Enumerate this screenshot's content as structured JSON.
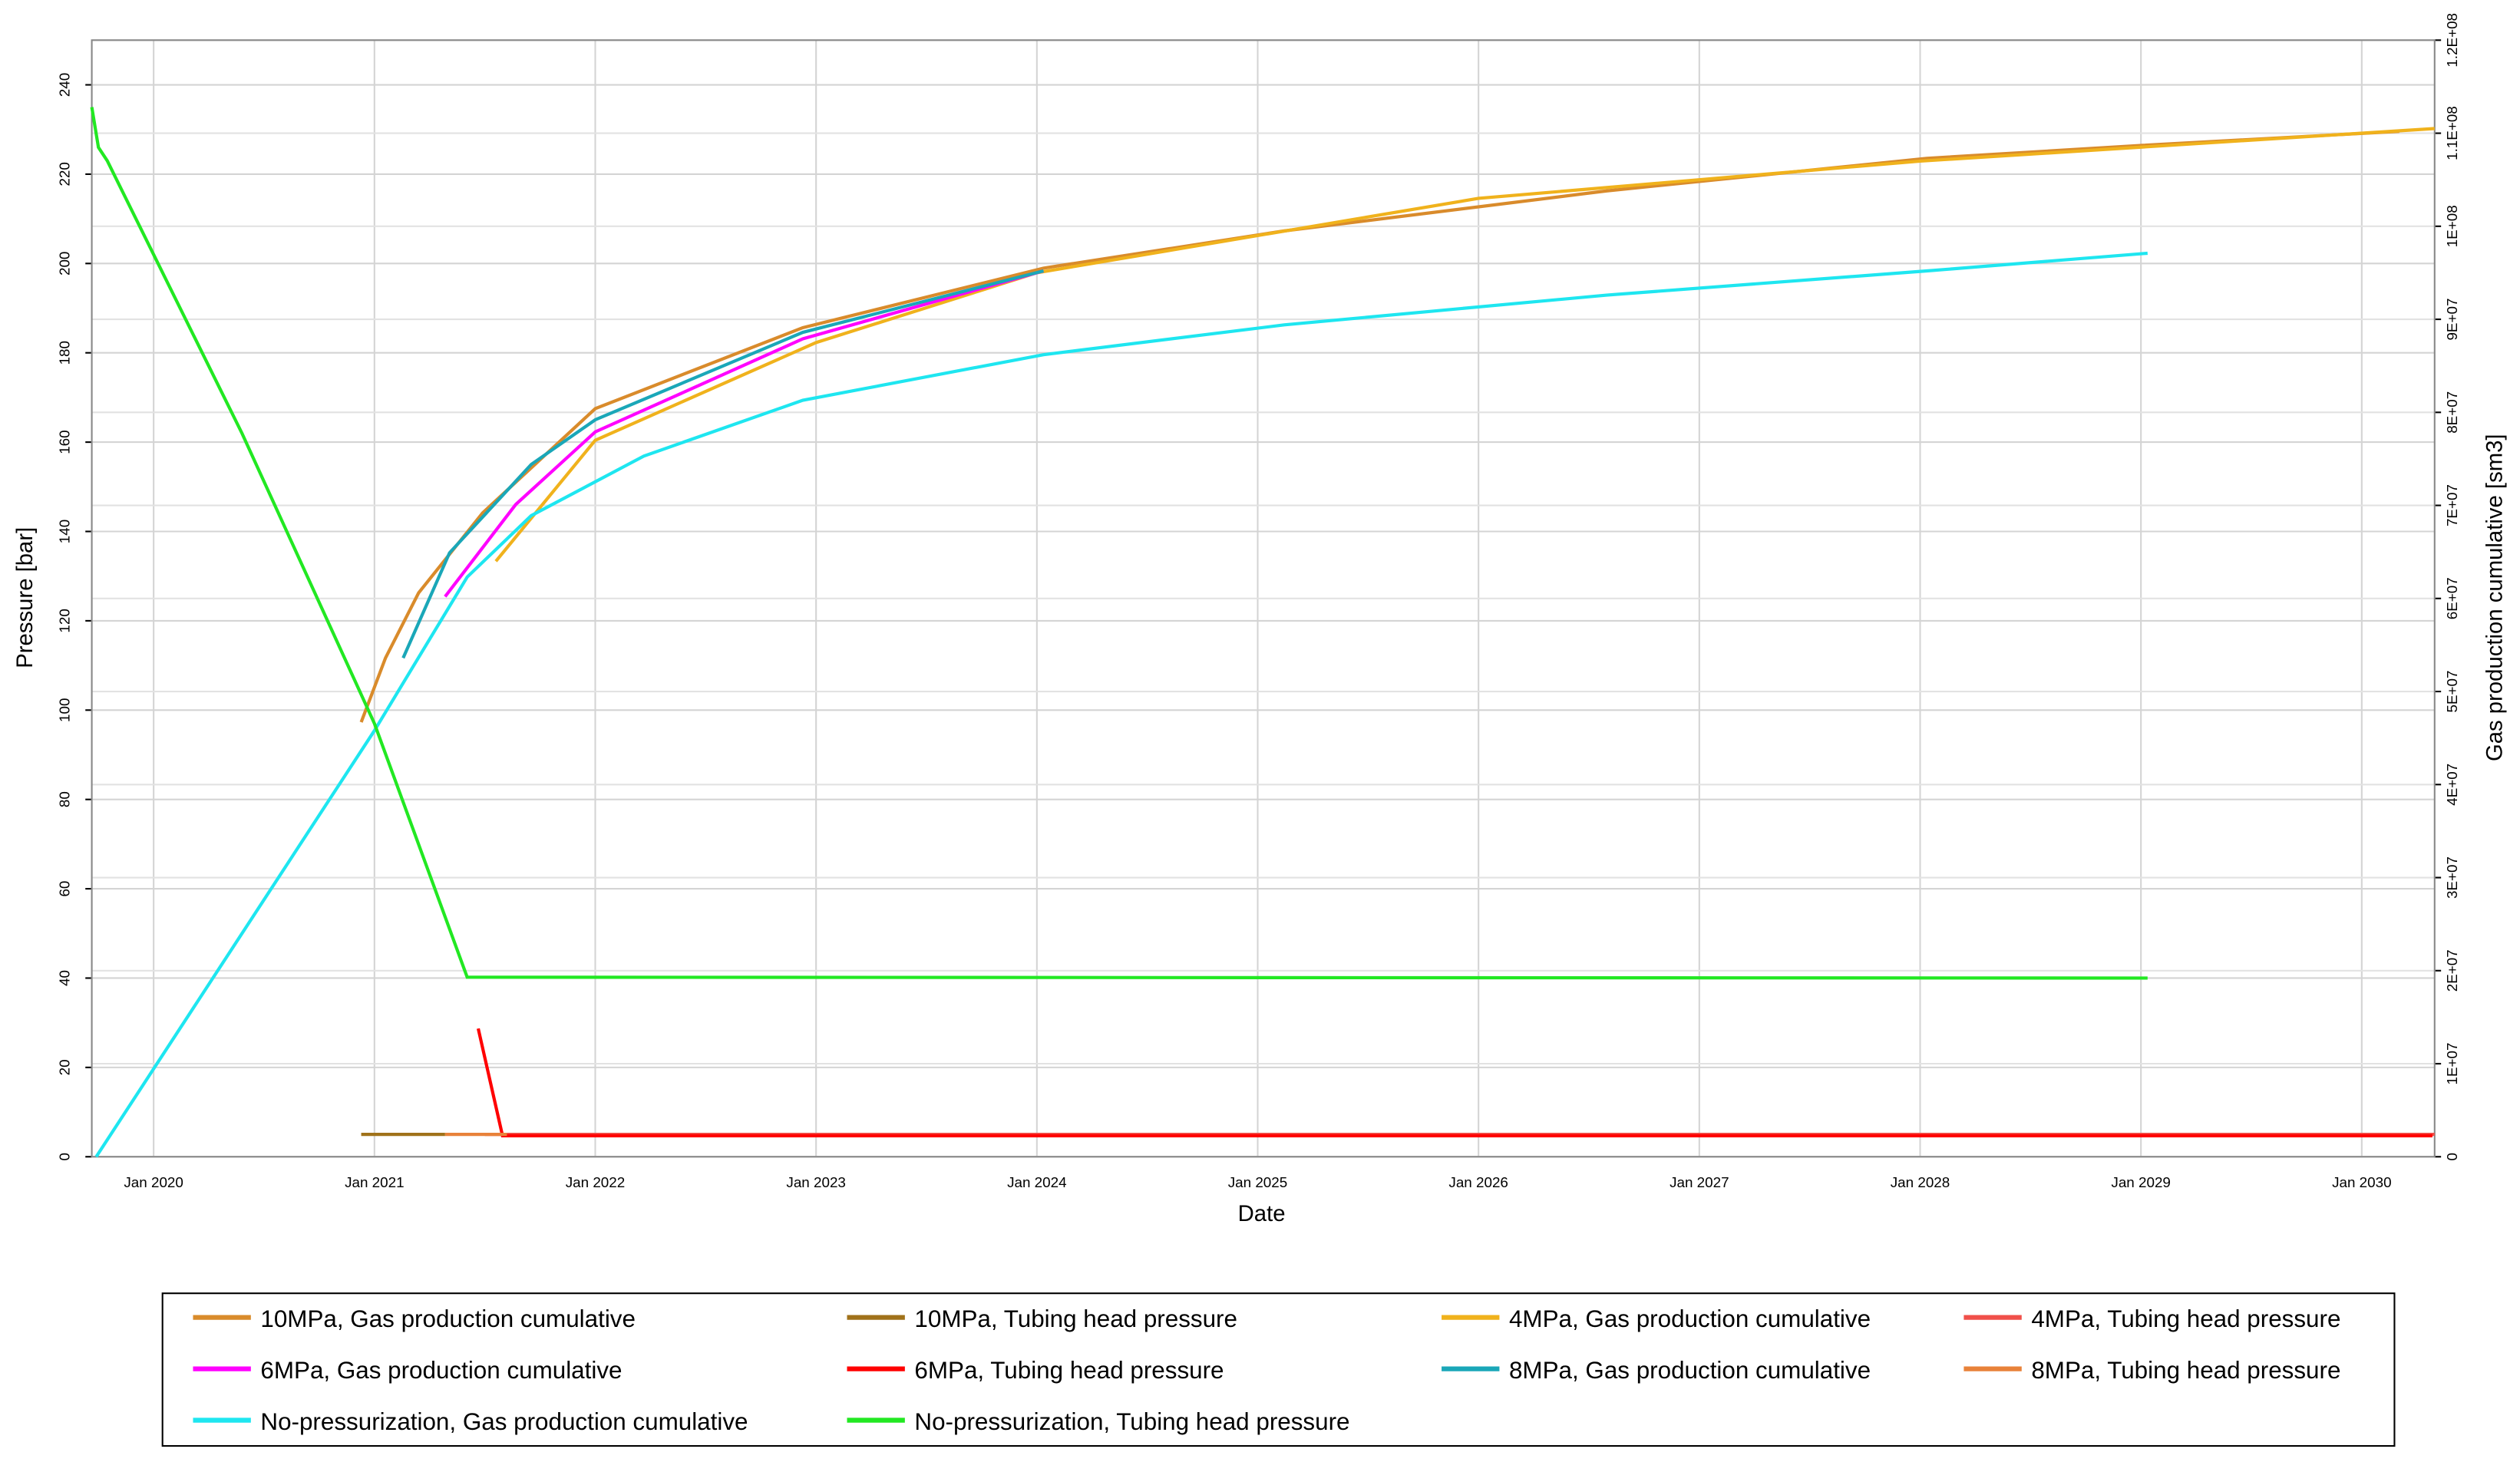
{
  "chart_data": {
    "type": "line",
    "x_label": "Date",
    "y_label": "Pressure [bar]",
    "y2_label": "Gas production cumulative [sm3]",
    "xlim": [
      2019.72,
      2030.33
    ],
    "xticks": [
      {
        "value": 2020,
        "label": "Jan 2020"
      },
      {
        "value": 2021,
        "label": "Jan 2021"
      },
      {
        "value": 2022,
        "label": "Jan 2022"
      },
      {
        "value": 2023,
        "label": "Jan 2023"
      },
      {
        "value": 2024,
        "label": "Jan 2024"
      },
      {
        "value": 2025,
        "label": "Jan 2025"
      },
      {
        "value": 2026,
        "label": "Jan 2026"
      },
      {
        "value": 2027,
        "label": "Jan 2027"
      },
      {
        "value": 2028,
        "label": "Jan 2028"
      },
      {
        "value": 2029,
        "label": "Jan 2029"
      },
      {
        "value": 2030,
        "label": "Jan 2030"
      }
    ],
    "ylim": [
      0,
      250
    ],
    "yticks": [
      0,
      20,
      40,
      60,
      80,
      100,
      120,
      140,
      160,
      180,
      200,
      220,
      240
    ],
    "y2lim": [
      0,
      120000000
    ],
    "y2ticks": [
      0,
      {
        "value": 10000000,
        "label": "1E+07"
      },
      {
        "value": 20000000,
        "label": "2E+07"
      },
      {
        "value": 30000000,
        "label": "3E+07"
      },
      {
        "value": 40000000,
        "label": "4E+07"
      },
      {
        "value": 50000000,
        "label": "5E+07"
      },
      {
        "value": 60000000,
        "label": "6E+07"
      },
      {
        "value": 70000000,
        "label": "7E+07"
      },
      {
        "value": 80000000,
        "label": "8E+07"
      },
      {
        "value": 90000000,
        "label": "9E+07"
      },
      {
        "value": 100000000,
        "label": "1E+08"
      },
      {
        "value": 110000000,
        "label": "1.1E+08"
      },
      {
        "value": 120000000,
        "label": "1.2E+08"
      }
    ],
    "grid": true,
    "legend": "bottom",
    "series": [
      {
        "name": "10MPa, Gas production cumulative",
        "color": "#d98b2b",
        "axis": "y2",
        "x": [
          2020.94,
          2021.05,
          2021.2,
          2021.49,
          2022.0,
          2022.94,
          2024.03,
          2025.12,
          2026.58,
          2028.03,
          2029.01,
          2030.17
        ],
        "values": [
          46700000,
          53600000,
          60600000,
          69200000,
          80400000,
          89100000,
          95500000,
          99500000,
          103800000,
          107300000,
          108700000,
          110200000
        ]
      },
      {
        "name": "10MPa, Tubing head pressure",
        "color": "#a0721a",
        "axis": "y",
        "x": [
          2020.94,
          2021.32
        ],
        "values": [
          5,
          5
        ]
      },
      {
        "name": "4MPa, Gas production cumulative",
        "color": "#f0b21c",
        "axis": "y2",
        "x": [
          2021.55,
          2022.0,
          2023.0,
          2024.0,
          2026.0,
          2028.0,
          2030.33
        ],
        "values": [
          64000000,
          77000000,
          87500000,
          95000000,
          103000000,
          107000000,
          110500000
        ]
      },
      {
        "name": "4MPa, Tubing head pressure",
        "color": "#f0504a",
        "axis": "y",
        "x": [
          2021.5,
          2030.33
        ],
        "values": [
          5,
          5
        ]
      },
      {
        "name": "6MPa, Gas production cumulative",
        "color": "#ff00ff",
        "axis": "y2",
        "x": [
          2021.32,
          2021.64,
          2022.0,
          2022.94,
          2024.03
        ],
        "values": [
          60200000,
          70100000,
          77900000,
          87900000,
          95200000
        ]
      },
      {
        "name": "6MPa, Tubing head pressure",
        "color": "#ff0000",
        "axis": "y",
        "x": [
          2021.47,
          2021.58,
          2030.32
        ],
        "values": [
          28.7,
          4.7,
          4.7
        ]
      },
      {
        "name": "8MPa, Gas production cumulative",
        "color": "#1aa7b8",
        "axis": "y2",
        "x": [
          2021.13,
          2021.34,
          2021.71,
          2022.0,
          2022.94,
          2024.03
        ],
        "values": [
          53600000,
          64900000,
          74400000,
          79200000,
          88600000,
          95200000
        ]
      },
      {
        "name": "8MPa, Tubing head pressure",
        "color": "#e8823a",
        "axis": "y",
        "x": [
          2021.32,
          2021.6
        ],
        "values": [
          5,
          5
        ]
      },
      {
        "name": "No-pressurization, Gas production cumulative",
        "color": "#1ee6f0",
        "axis": "y2",
        "x": [
          2019.74,
          2021.0,
          2021.42,
          2021.71,
          2022.22,
          2022.94,
          2024.03,
          2025.12,
          2026.58,
          2028.03,
          2029.03
        ],
        "values": [
          0,
          45800000,
          62300000,
          68900000,
          75300000,
          81300000,
          86200000,
          89400000,
          92600000,
          95200000,
          97100000
        ]
      },
      {
        "name": "No-pressurization, Tubing head pressure",
        "color": "#22e822",
        "axis": "y",
        "x": [
          2019.72,
          2019.75,
          2019.79,
          2020.4,
          2021.0,
          2021.42,
          2029.03
        ],
        "values": [
          235,
          226,
          223,
          162,
          97,
          40.2,
          40
        ]
      }
    ]
  }
}
